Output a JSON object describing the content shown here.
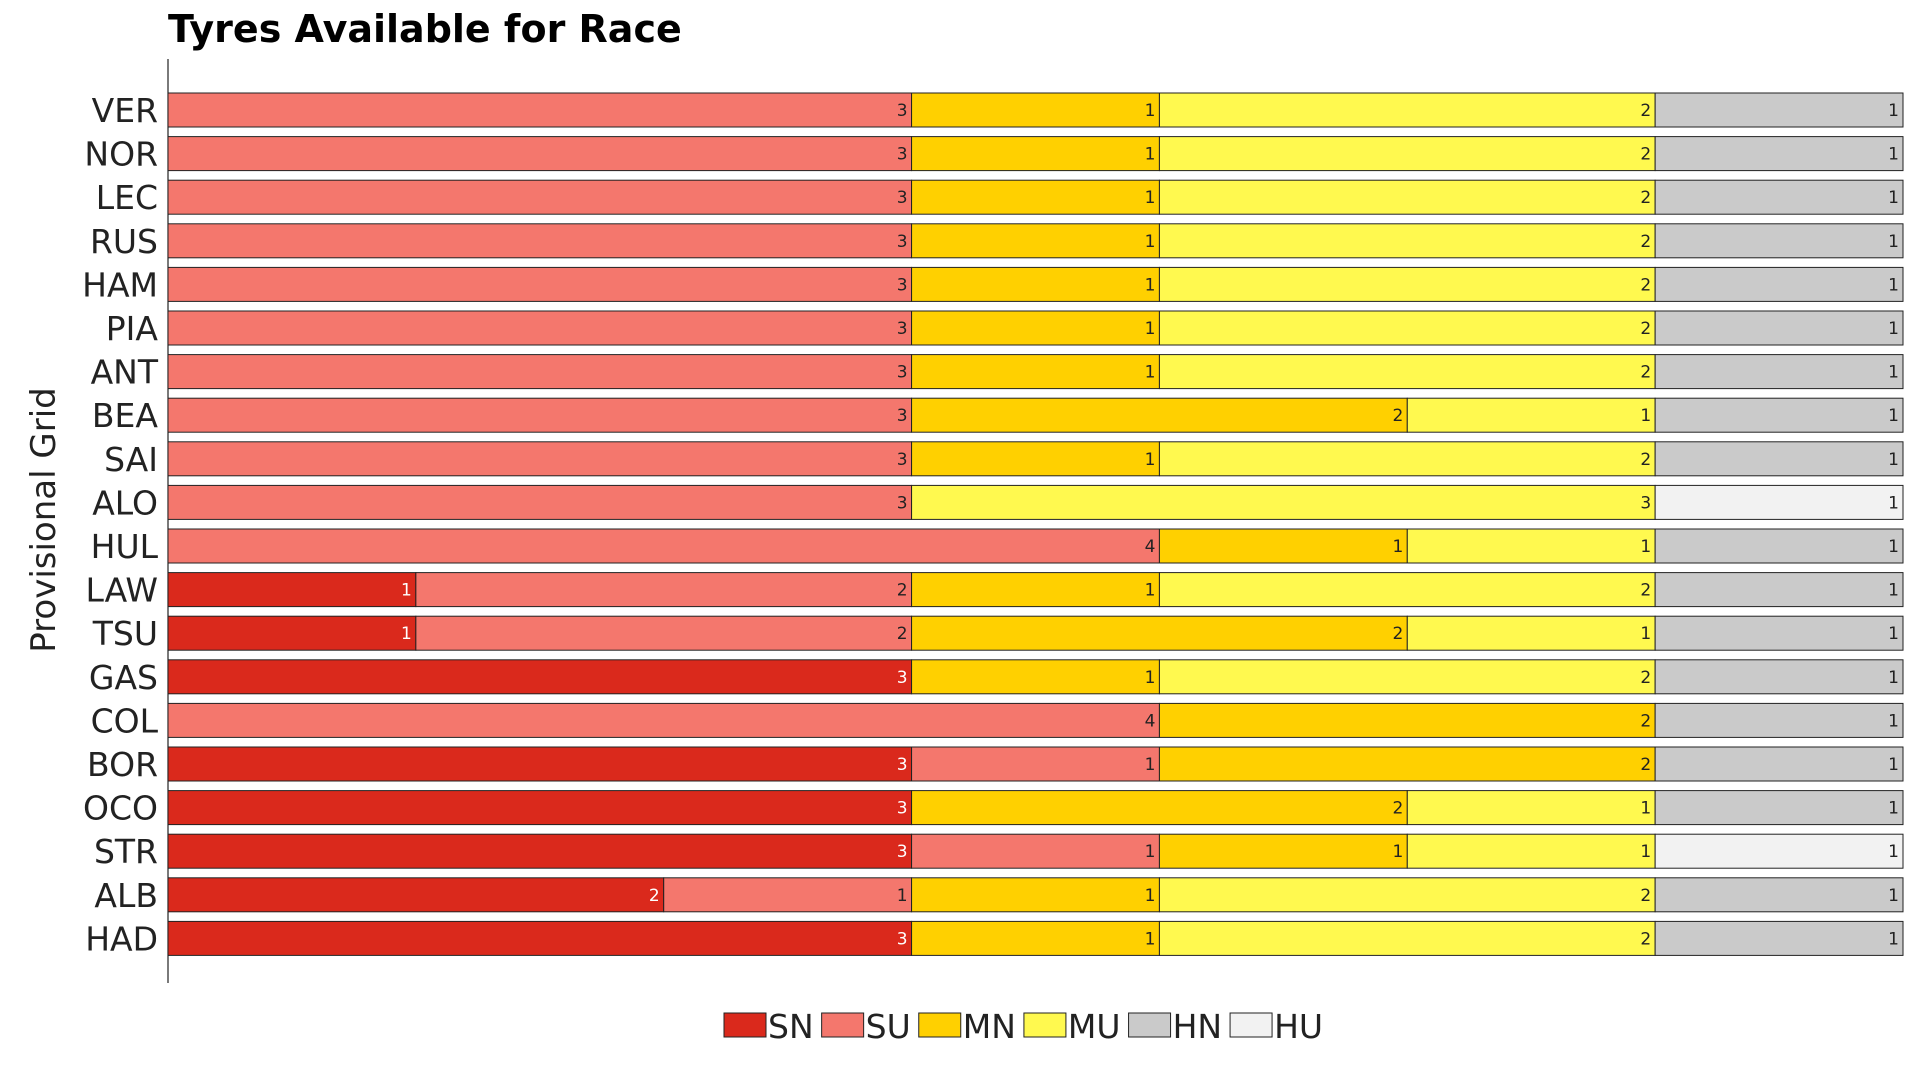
{
  "chart_data": {
    "type": "bar",
    "orientation": "horizontal-stacked",
    "title": "Tyres Available for Race",
    "ylabel": "Provisional Grid",
    "xlabel": "",
    "xlim": [
      0,
      7
    ],
    "grid": false,
    "legend_placement": "bottom-center",
    "categories": [
      "VER",
      "NOR",
      "LEC",
      "RUS",
      "HAM",
      "PIA",
      "ANT",
      "BEA",
      "SAI",
      "ALO",
      "HUL",
      "LAW",
      "TSU",
      "GAS",
      "COL",
      "BOR",
      "OCO",
      "STR",
      "ALB",
      "HAD"
    ],
    "series": [
      {
        "name": "SN",
        "color": "#da291c",
        "values": [
          0,
          0,
          0,
          0,
          0,
          0,
          0,
          0,
          0,
          0,
          0,
          1,
          1,
          3,
          0,
          3,
          3,
          3,
          2,
          3
        ]
      },
      {
        "name": "SU",
        "color": "#f4776d",
        "values": [
          3,
          3,
          3,
          3,
          3,
          3,
          3,
          3,
          3,
          3,
          4,
          2,
          2,
          0,
          4,
          1,
          0,
          1,
          1,
          0
        ]
      },
      {
        "name": "MN",
        "color": "#ffd000",
        "values": [
          1,
          1,
          1,
          1,
          1,
          1,
          1,
          2,
          1,
          0,
          1,
          1,
          2,
          1,
          2,
          2,
          2,
          1,
          1,
          1
        ]
      },
      {
        "name": "MU",
        "color": "#fff94f",
        "values": [
          2,
          2,
          2,
          2,
          2,
          2,
          2,
          1,
          2,
          3,
          1,
          2,
          1,
          2,
          0,
          0,
          1,
          1,
          2,
          2
        ]
      },
      {
        "name": "HN",
        "color": "#cacaca",
        "values": [
          1,
          1,
          1,
          1,
          1,
          1,
          1,
          1,
          1,
          0,
          1,
          1,
          1,
          1,
          1,
          1,
          1,
          0,
          1,
          1
        ]
      },
      {
        "name": "HU",
        "color": "#f2f2f2",
        "values": [
          0,
          0,
          0,
          0,
          0,
          0,
          0,
          0,
          0,
          1,
          0,
          0,
          0,
          0,
          0,
          0,
          0,
          1,
          0,
          0
        ]
      }
    ]
  }
}
